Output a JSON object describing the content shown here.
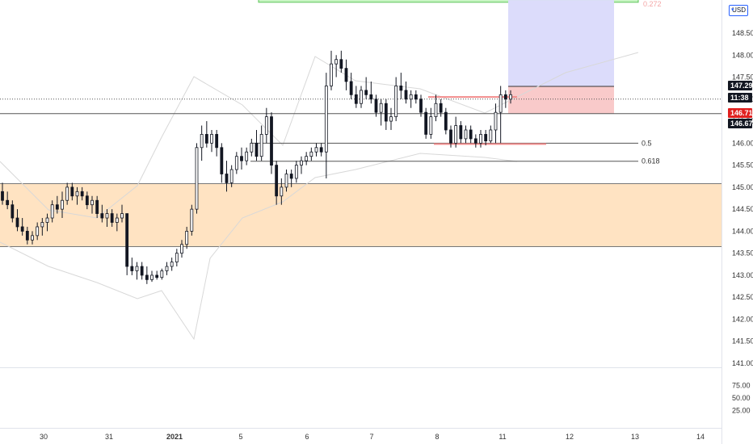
{
  "app": {
    "currency_button": "USD",
    "currency_dropdown": "chevron-down-icon"
  },
  "chart_data": {
    "type": "candlestick",
    "price_axis": {
      "ylim": [
        140.9,
        149.35
      ],
      "ticks": [
        "148.50",
        "148.00",
        "147.50",
        "147.00",
        "146.50",
        "146.00",
        "145.50",
        "145.00",
        "144.50",
        "144.00",
        "143.50",
        "143.00",
        "142.50",
        "142.00",
        "141.50",
        "141.00"
      ]
    },
    "oscillator": {
      "ylim": [
        0,
        100
      ],
      "ticks": [
        "75.00",
        "50.00",
        "25.00"
      ]
    },
    "x_axis": {
      "labels": [
        "30",
        "31",
        "2021",
        "5",
        "6",
        "7",
        "8",
        "11",
        "12",
        "13",
        "14"
      ]
    },
    "price_labels": [
      {
        "text": "147.29",
        "value": 147.29,
        "color": "#131722",
        "text_color": "#ffffff"
      },
      {
        "text": "11:38",
        "value": 147.0,
        "color": "#131722",
        "text_color": "#ffffff"
      },
      {
        "text": "146.71",
        "value": 146.71,
        "color": "#e0201f",
        "text_color": "#ffffff"
      },
      {
        "text": "146.67",
        "value": 146.67,
        "color": "#131722",
        "text_color": "#ffffff"
      }
    ],
    "horizontal_lines": [
      {
        "value": 147.0,
        "style": "dotted",
        "color": "#555555"
      },
      {
        "value": 146.67,
        "style": "solid",
        "color": "#555555"
      }
    ],
    "fib_levels": [
      {
        "label": "0.5",
        "value": 146.0
      },
      {
        "label": "0.618",
        "value": 145.59
      },
      {
        "label": "0.272",
        "value": 149.3
      }
    ],
    "zones": [
      {
        "name": "demand-zone",
        "from": 143.65,
        "to": 145.08,
        "color": "#ffe3c2"
      },
      {
        "name": "target-zone",
        "from": 149.2,
        "to": 149.35,
        "color": "#c8f5c3"
      },
      {
        "name": "position-profit",
        "from": 147.29,
        "to": 149.25,
        "color": "#dcdcfb"
      },
      {
        "name": "position-loss",
        "from": 146.67,
        "to": 147.29,
        "color": "#f9caca"
      }
    ],
    "resistance_line": 147.05,
    "support_line": 145.98,
    "oscillator_ticks": {
      "75.00": 75,
      "50.00": 50,
      "25.00": 25
    },
    "candles": [
      [
        144.9,
        145.1,
        144.6,
        144.7
      ],
      [
        144.7,
        144.9,
        144.5,
        144.6
      ],
      [
        144.6,
        144.7,
        144.2,
        144.3
      ],
      [
        144.3,
        144.5,
        144.0,
        144.1
      ],
      [
        144.1,
        144.3,
        143.9,
        144.0
      ],
      [
        144.0,
        144.1,
        143.7,
        143.8
      ],
      [
        143.8,
        144.0,
        143.7,
        143.9
      ],
      [
        143.9,
        144.2,
        143.8,
        144.1
      ],
      [
        144.1,
        144.3,
        143.9,
        144.2
      ],
      [
        144.2,
        144.4,
        144.0,
        144.3
      ],
      [
        144.3,
        144.7,
        144.2,
        144.6
      ],
      [
        144.6,
        144.8,
        144.4,
        144.5
      ],
      [
        144.5,
        144.9,
        144.3,
        144.7
      ],
      [
        144.7,
        145.1,
        144.6,
        145.0
      ],
      [
        145.0,
        145.1,
        144.7,
        144.8
      ],
      [
        144.8,
        145.0,
        144.6,
        144.9
      ],
      [
        144.9,
        145.0,
        144.7,
        144.8
      ],
      [
        144.8,
        144.9,
        144.5,
        144.6
      ],
      [
        144.6,
        144.8,
        144.4,
        144.7
      ],
      [
        144.7,
        144.8,
        144.3,
        144.4
      ],
      [
        144.4,
        144.6,
        144.2,
        144.3
      ],
      [
        144.3,
        144.5,
        144.1,
        144.4
      ],
      [
        144.4,
        144.5,
        144.1,
        144.2
      ],
      [
        144.2,
        144.4,
        144.0,
        144.3
      ],
      [
        144.3,
        144.6,
        144.2,
        144.4
      ],
      [
        144.4,
        144.4,
        143.0,
        143.2
      ],
      [
        143.2,
        143.4,
        143.0,
        143.1
      ],
      [
        143.1,
        143.3,
        142.9,
        143.2
      ],
      [
        143.2,
        143.3,
        142.9,
        143.0
      ],
      [
        143.0,
        143.2,
        142.8,
        142.9
      ],
      [
        142.9,
        143.1,
        142.85,
        143.0
      ],
      [
        143.0,
        143.1,
        142.9,
        142.95
      ],
      [
        142.95,
        143.15,
        142.9,
        143.1
      ],
      [
        143.1,
        143.3,
        143.0,
        143.2
      ],
      [
        143.2,
        143.4,
        143.1,
        143.3
      ],
      [
        143.3,
        143.6,
        143.2,
        143.5
      ],
      [
        143.5,
        143.8,
        143.4,
        143.7
      ],
      [
        143.7,
        144.1,
        143.6,
        144.0
      ],
      [
        144.0,
        144.6,
        143.9,
        144.5
      ],
      [
        144.5,
        146.0,
        144.4,
        145.9
      ],
      [
        145.9,
        146.4,
        145.6,
        146.2
      ],
      [
        146.2,
        146.5,
        145.9,
        146.0
      ],
      [
        146.0,
        146.3,
        145.8,
        146.2
      ],
      [
        146.2,
        146.3,
        145.7,
        145.9
      ],
      [
        145.9,
        146.0,
        145.1,
        145.3
      ],
      [
        145.3,
        145.6,
        144.9,
        145.1
      ],
      [
        145.1,
        145.5,
        145.0,
        145.4
      ],
      [
        145.4,
        145.8,
        145.3,
        145.7
      ],
      [
        145.7,
        145.9,
        145.4,
        145.6
      ],
      [
        145.6,
        145.9,
        145.5,
        145.8
      ],
      [
        145.8,
        146.1,
        145.7,
        146.0
      ],
      [
        146.0,
        146.3,
        145.6,
        145.7
      ],
      [
        145.7,
        146.4,
        145.6,
        146.2
      ],
      [
        146.2,
        146.8,
        146.0,
        146.6
      ],
      [
        146.6,
        146.7,
        145.3,
        145.5
      ],
      [
        145.5,
        145.6,
        144.6,
        144.8
      ],
      [
        144.8,
        145.2,
        144.6,
        145.0
      ],
      [
        145.0,
        145.4,
        144.9,
        145.3
      ],
      [
        145.3,
        145.4,
        145.0,
        145.2
      ],
      [
        145.2,
        145.6,
        145.1,
        145.5
      ],
      [
        145.5,
        145.7,
        145.3,
        145.6
      ],
      [
        145.6,
        145.8,
        145.5,
        145.7
      ],
      [
        145.7,
        145.9,
        145.6,
        145.8
      ],
      [
        145.8,
        146.0,
        145.7,
        145.9
      ],
      [
        145.9,
        146.0,
        145.7,
        145.8
      ],
      [
        145.8,
        147.6,
        145.2,
        147.3
      ],
      [
        147.3,
        148.1,
        147.2,
        147.8
      ],
      [
        147.8,
        148.0,
        147.5,
        147.9
      ],
      [
        147.9,
        148.1,
        147.6,
        147.7
      ],
      [
        147.7,
        147.9,
        147.2,
        147.4
      ],
      [
        147.4,
        147.6,
        147.0,
        147.1
      ],
      [
        147.1,
        147.3,
        146.8,
        146.9
      ],
      [
        146.9,
        147.3,
        146.8,
        147.2
      ],
      [
        147.2,
        147.5,
        147.0,
        147.1
      ],
      [
        147.1,
        147.4,
        146.9,
        147.0
      ],
      [
        147.0,
        147.1,
        146.6,
        146.7
      ],
      [
        146.7,
        147.0,
        146.4,
        146.9
      ],
      [
        146.9,
        147.0,
        146.3,
        146.5
      ],
      [
        146.5,
        146.8,
        146.3,
        146.6
      ],
      [
        146.6,
        147.5,
        146.5,
        147.3
      ],
      [
        147.3,
        147.6,
        147.0,
        147.2
      ],
      [
        147.2,
        147.4,
        146.9,
        147.0
      ],
      [
        147.0,
        147.2,
        146.8,
        147.1
      ],
      [
        147.1,
        147.2,
        146.9,
        147.0
      ],
      [
        147.0,
        147.1,
        146.6,
        146.7
      ],
      [
        146.7,
        146.8,
        146.1,
        146.2
      ],
      [
        146.2,
        146.8,
        146.1,
        146.6
      ],
      [
        146.6,
        147.1,
        146.5,
        146.9
      ],
      [
        146.9,
        147.0,
        146.6,
        146.7
      ],
      [
        146.7,
        146.8,
        146.2,
        146.3
      ],
      [
        146.3,
        146.4,
        145.9,
        146.0
      ],
      [
        146.0,
        146.6,
        145.9,
        146.4
      ],
      [
        146.4,
        146.5,
        146.0,
        146.1
      ],
      [
        146.1,
        146.4,
        146.0,
        146.3
      ],
      [
        146.3,
        146.4,
        146.0,
        146.1
      ],
      [
        146.1,
        146.2,
        145.9,
        146.0
      ],
      [
        146.0,
        146.3,
        145.9,
        146.2
      ],
      [
        146.2,
        146.3,
        145.95,
        146.05
      ],
      [
        146.05,
        146.4,
        146.0,
        146.3
      ],
      [
        146.3,
        146.9,
        146.0,
        146.7
      ],
      [
        146.7,
        147.3,
        146.0,
        147.1
      ],
      [
        147.1,
        147.2,
        146.8,
        147.0
      ],
      [
        147.0,
        147.2,
        146.9,
        147.1
      ]
    ]
  }
}
